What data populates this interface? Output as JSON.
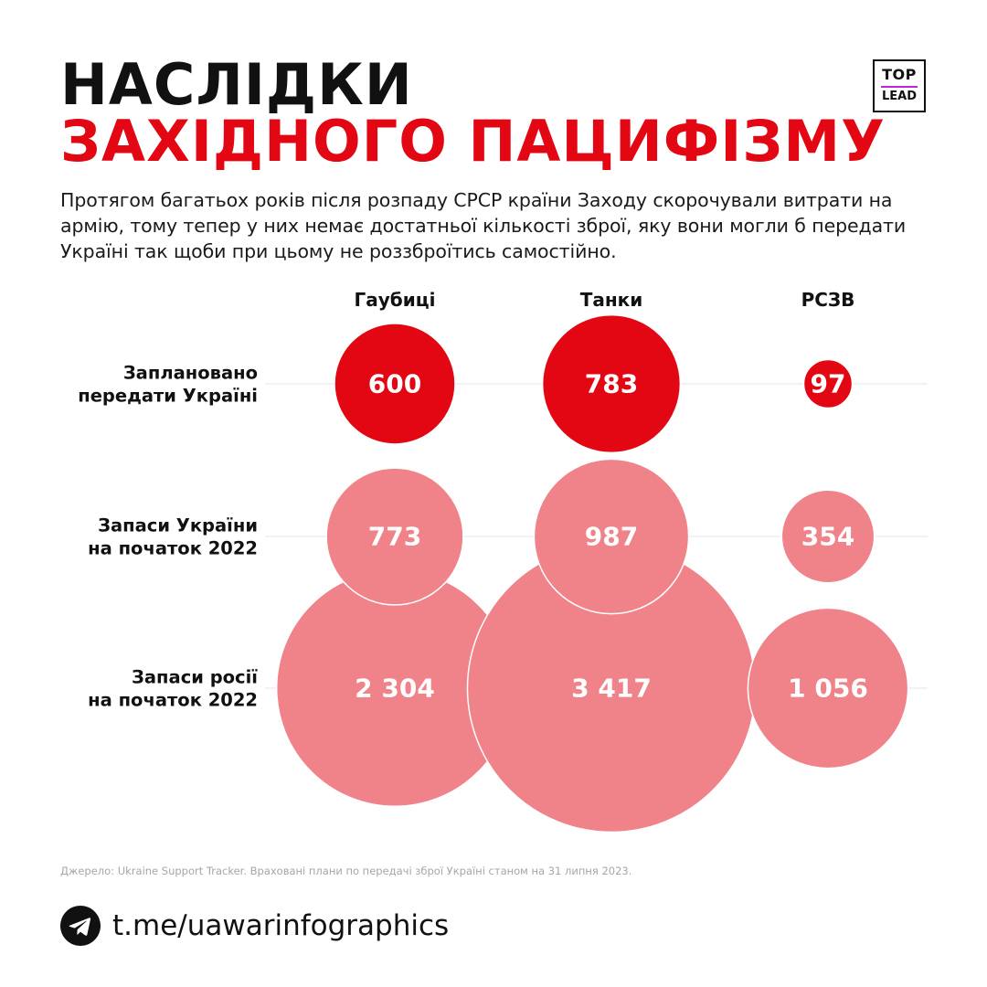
{
  "title": {
    "line1": "НАСЛІДКИ",
    "line2": "ЗАХІДНОГО ПАЦИФІЗМУ"
  },
  "logo": {
    "line1": "TOP",
    "line2": "LEAD"
  },
  "intro": "Протягом багатьох років після розпаду СРСР країни Заходу скорочували витрати на армію, тому тепер у них немає достатньої кількості зброї, яку вони могли б передати Україні так щоби при цьому не роззброїтись самостійно.",
  "chart_data": {
    "type": "bubble-matrix",
    "columns": [
      "Гаубиці",
      "Танки",
      "РСЗВ"
    ],
    "rows": [
      {
        "label": [
          "Заплановано",
          "передати Україні"
        ],
        "values": [
          600,
          783,
          97
        ],
        "display": [
          "600",
          "783",
          "97"
        ],
        "color": "#e30613"
      },
      {
        "label": [
          "Запаси України",
          "на початок 2022"
        ],
        "values": [
          773,
          987,
          354
        ],
        "display": [
          "773",
          "987",
          "354"
        ],
        "color": "#f0838a"
      },
      {
        "label": [
          "Запаси росії",
          "на початок 2022"
        ],
        "values": [
          2304,
          3417,
          1056
        ],
        "display": [
          "2 304",
          "3 417",
          "1 056"
        ],
        "color": "#f0838a"
      }
    ],
    "bubble_area_proportional_to_value": true
  },
  "source": "Джерело: Ukraine Support Tracker. Враховані плани по передачі зброї Україні станом на 31 липня 2023.",
  "footer": {
    "link": "t.me/uawarinfographics",
    "icon": "telegram-icon"
  },
  "colors": {
    "accent": "#e30613",
    "bubble_light": "#f0838a",
    "text": "#111111",
    "gridline": "#e5e5e5"
  }
}
